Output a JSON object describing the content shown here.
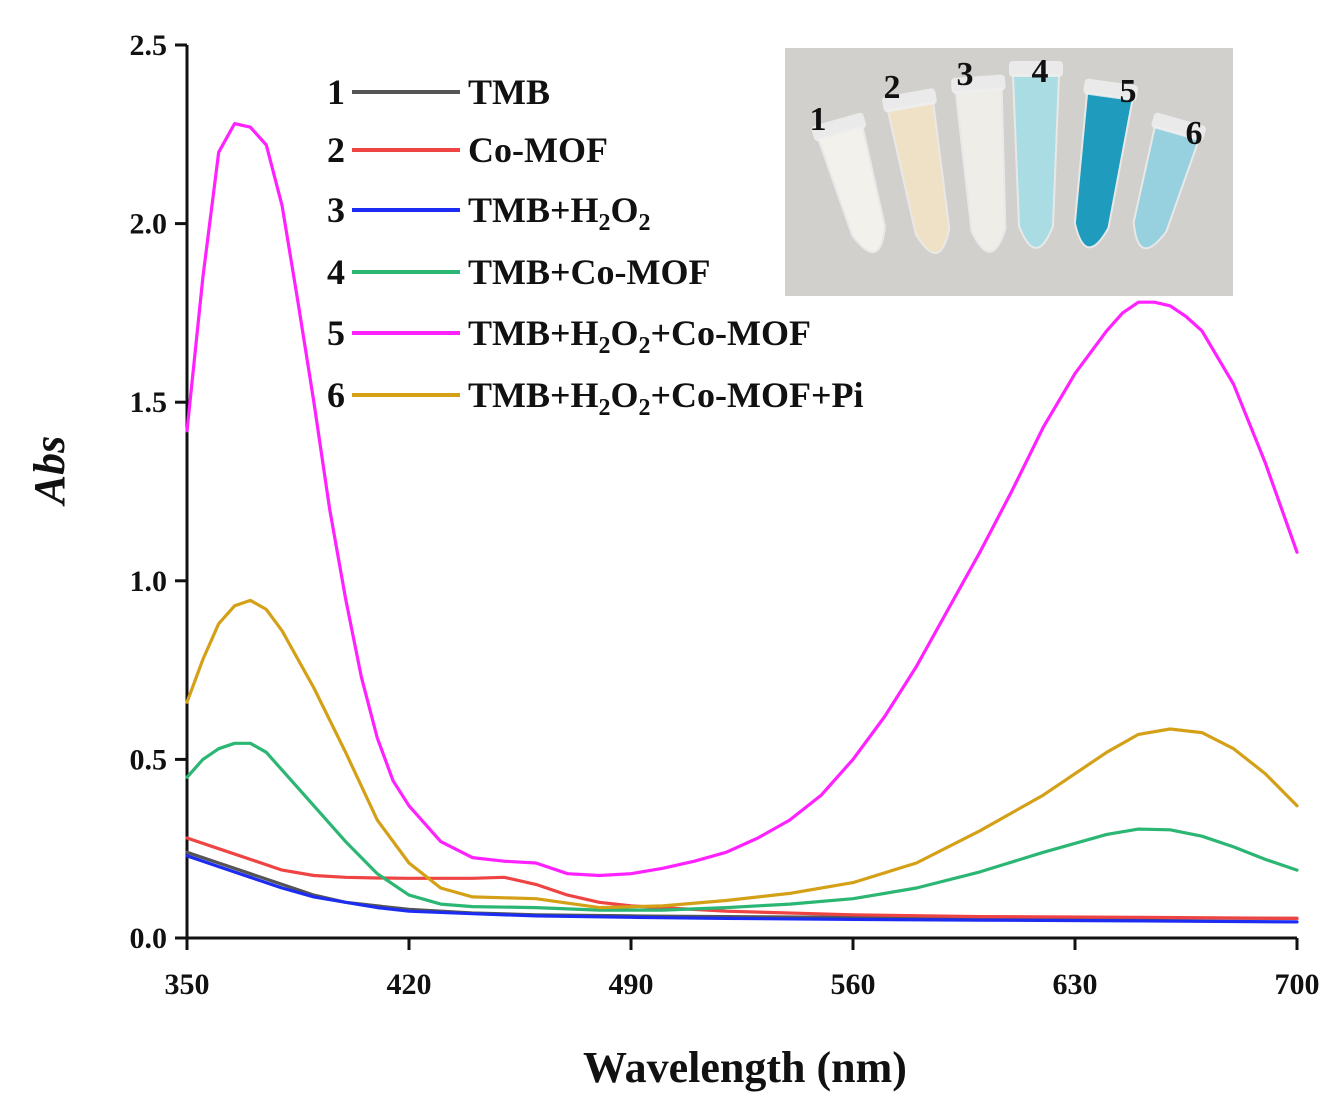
{
  "chart_data": {
    "type": "line",
    "xlabel": "Wavelength (nm)",
    "ylabel": "Abs",
    "xlim": [
      350,
      700
    ],
    "ylim": [
      0,
      2.5
    ],
    "x_ticks": [
      350,
      420,
      490,
      560,
      630,
      700
    ],
    "y_ticks": [
      0.0,
      0.5,
      1.0,
      1.5,
      2.0,
      2.5
    ],
    "y_tick_labels": [
      "0.0",
      "0.5",
      "1.0",
      "1.5",
      "2.0",
      "2.5"
    ],
    "legend_position": "top-left",
    "series": [
      {
        "num": "1",
        "name": "TMB",
        "label_main": "TMB",
        "sub1": "",
        "mid": "",
        "sub2": "",
        "tail": "",
        "color": "#555555",
        "x": [
          350,
          360,
          370,
          380,
          390,
          400,
          410,
          420,
          440,
          460,
          490,
          520,
          560,
          600,
          650,
          700
        ],
        "y": [
          0.24,
          0.21,
          0.18,
          0.15,
          0.12,
          0.1,
          0.09,
          0.08,
          0.07,
          0.065,
          0.062,
          0.06,
          0.058,
          0.057,
          0.056,
          0.055
        ]
      },
      {
        "num": "2",
        "name": "Co-MOF",
        "label_main": "Co-MOF",
        "sub1": "",
        "mid": "",
        "sub2": "",
        "tail": "",
        "color": "#ef4444",
        "x": [
          350,
          360,
          370,
          380,
          390,
          400,
          410,
          420,
          440,
          450,
          460,
          470,
          480,
          490,
          520,
          560,
          600,
          650,
          700
        ],
        "y": [
          0.28,
          0.25,
          0.22,
          0.19,
          0.175,
          0.17,
          0.168,
          0.167,
          0.167,
          0.17,
          0.15,
          0.12,
          0.1,
          0.09,
          0.075,
          0.065,
          0.06,
          0.058,
          0.055
        ]
      },
      {
        "num": "3",
        "name": "TMB+H2O2",
        "label_main": "TMB+H",
        "sub1": "2",
        "mid": "O",
        "sub2": "2",
        "tail": "",
        "color": "#1d2cf2",
        "x": [
          350,
          360,
          370,
          380,
          390,
          400,
          410,
          420,
          440,
          460,
          490,
          520,
          560,
          600,
          650,
          700
        ],
        "y": [
          0.23,
          0.2,
          0.17,
          0.14,
          0.115,
          0.1,
          0.085,
          0.075,
          0.068,
          0.062,
          0.058,
          0.055,
          0.052,
          0.05,
          0.048,
          0.045
        ]
      },
      {
        "num": "4",
        "name": "TMB+Co-MOF",
        "label_main": "TMB+Co-MOF",
        "sub1": "",
        "mid": "",
        "sub2": "",
        "tail": "",
        "color": "#2bb673",
        "x": [
          350,
          355,
          360,
          365,
          370,
          375,
          380,
          390,
          400,
          410,
          420,
          430,
          440,
          460,
          480,
          500,
          520,
          540,
          560,
          580,
          600,
          620,
          640,
          650,
          660,
          670,
          680,
          690,
          700
        ],
        "y": [
          0.45,
          0.5,
          0.53,
          0.545,
          0.545,
          0.52,
          0.47,
          0.37,
          0.27,
          0.18,
          0.12,
          0.095,
          0.088,
          0.085,
          0.078,
          0.078,
          0.085,
          0.095,
          0.11,
          0.14,
          0.185,
          0.24,
          0.29,
          0.305,
          0.303,
          0.285,
          0.255,
          0.22,
          0.19
        ]
      },
      {
        "num": "5",
        "name": "TMB+H2O2+Co-MOF",
        "label_main": "TMB+H",
        "sub1": "2",
        "mid": "O",
        "sub2": "2",
        "tail": "+Co-MOF",
        "color": "#ff21ff",
        "x": [
          350,
          355,
          360,
          365,
          370,
          375,
          380,
          385,
          390,
          395,
          400,
          405,
          410,
          415,
          420,
          430,
          440,
          450,
          460,
          470,
          480,
          490,
          500,
          510,
          520,
          530,
          540,
          550,
          560,
          570,
          580,
          590,
          600,
          610,
          620,
          630,
          640,
          645,
          650,
          655,
          660,
          665,
          670,
          680,
          690,
          700
        ],
        "y": [
          1.42,
          1.85,
          2.2,
          2.28,
          2.27,
          2.22,
          2.05,
          1.78,
          1.5,
          1.2,
          0.95,
          0.73,
          0.56,
          0.44,
          0.37,
          0.27,
          0.225,
          0.215,
          0.21,
          0.18,
          0.175,
          0.18,
          0.195,
          0.215,
          0.24,
          0.28,
          0.33,
          0.4,
          0.5,
          0.62,
          0.76,
          0.92,
          1.08,
          1.25,
          1.43,
          1.58,
          1.7,
          1.75,
          1.78,
          1.78,
          1.77,
          1.74,
          1.7,
          1.55,
          1.33,
          1.08
        ]
      },
      {
        "num": "6",
        "name": "TMB+H2O2+Co-MOF+Pi",
        "label_main": "TMB+H",
        "sub1": "2",
        "mid": "O",
        "sub2": "2",
        "tail": "+Co-MOF+Pi",
        "color": "#d4a017",
        "x": [
          350,
          355,
          360,
          365,
          370,
          375,
          380,
          390,
          400,
          410,
          420,
          430,
          440,
          460,
          480,
          500,
          520,
          540,
          560,
          580,
          600,
          620,
          640,
          650,
          660,
          670,
          680,
          690,
          700
        ],
        "y": [
          0.66,
          0.78,
          0.88,
          0.93,
          0.945,
          0.92,
          0.86,
          0.7,
          0.52,
          0.33,
          0.21,
          0.14,
          0.115,
          0.11,
          0.085,
          0.09,
          0.105,
          0.125,
          0.155,
          0.21,
          0.3,
          0.4,
          0.52,
          0.57,
          0.585,
          0.575,
          0.53,
          0.46,
          0.37
        ]
      }
    ]
  },
  "inset": {
    "tube_labels": [
      "1",
      "2",
      "3",
      "4",
      "5",
      "6"
    ],
    "tube_colors": [
      "#f3f1ec",
      "#efe1c5",
      "#eeede8",
      "#a9dce3",
      "#1f9cbd",
      "#97d1df"
    ]
  }
}
